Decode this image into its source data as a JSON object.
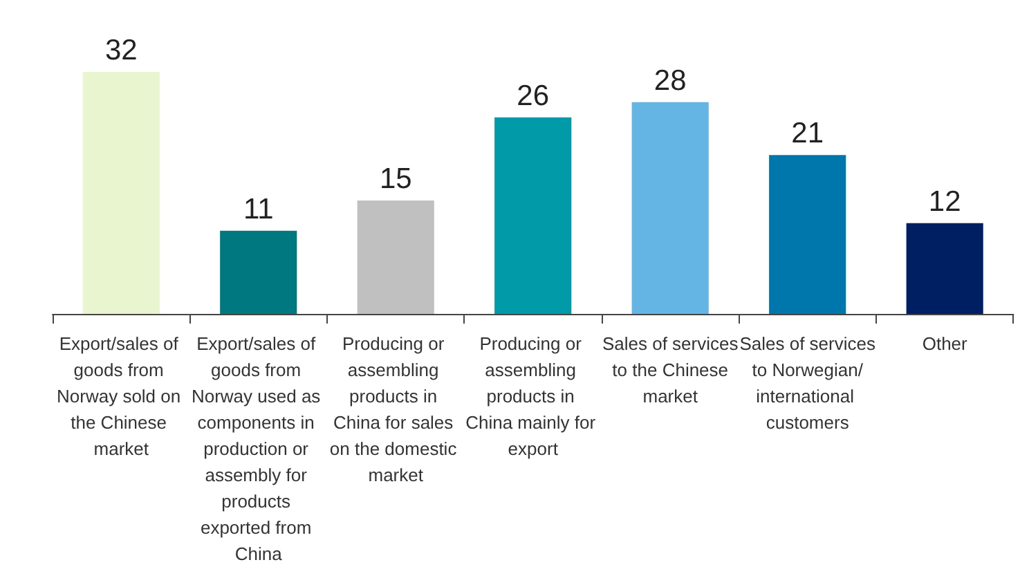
{
  "chart_data": {
    "type": "bar",
    "categories": [
      "Export/sales of goods from Norway sold on the Chinese market",
      "Export/sales of goods from Norway used as components in production or assembly for products exported from China",
      "Producing or assembling products in China for sales on the domestic market",
      "Producing or assembling products in China mainly for export",
      "Sales of services to the Chinese market",
      "Sales of services to Norwegian/ international customers",
      "Other"
    ],
    "values": [
      32,
      11,
      15,
      26,
      28,
      21,
      12
    ],
    "colors": [
      "#e8f5cf",
      "#00787f",
      "#c0c0c0",
      "#009aa9",
      "#64b5e4",
      "#0077ac",
      "#001f63"
    ],
    "data_labels": true
  }
}
